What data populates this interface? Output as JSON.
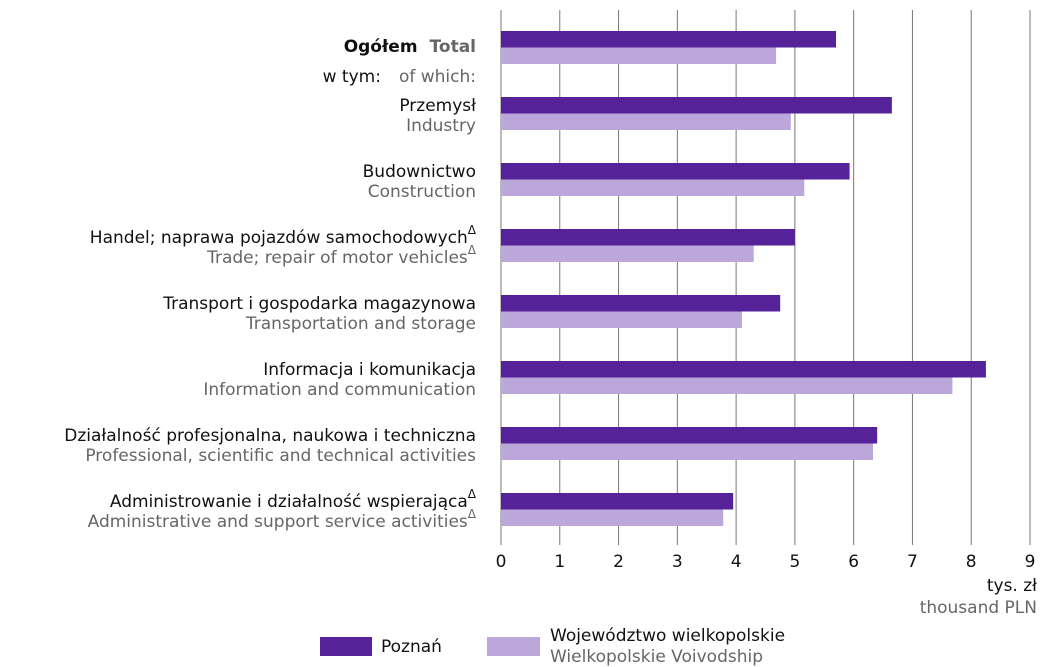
{
  "chart_data": {
    "type": "bar",
    "orientation": "horizontal",
    "categories": [
      {
        "pl": "Ogółem",
        "en": "Total"
      },
      {
        "pl": "Przemysł",
        "en": "Industry"
      },
      {
        "pl": "Budownictwo",
        "en": "Construction"
      },
      {
        "pl": "Handel; naprawa pojazdów samochodowych",
        "en": "Trade; repair of motor vehicles",
        "mark": "Δ"
      },
      {
        "pl": "Transport i gospodarka magazynowa",
        "en": "Transportation and storage"
      },
      {
        "pl": "Informacja i komunikacja",
        "en": "Information and communication"
      },
      {
        "pl": "Działalność profesjonalna, naukowa i techniczna",
        "en": "Professional, scientific and technical activities"
      },
      {
        "pl": "Administrowanie i działalność wspierająca",
        "en": "Administrative and support service activities",
        "mark": "Δ"
      }
    ],
    "subheading": {
      "pl": "w tym:",
      "en": "of which:"
    },
    "series": [
      {
        "name": "Poznań",
        "color": "#55229a",
        "values": [
          5.7,
          6.65,
          5.93,
          5.0,
          4.75,
          8.25,
          6.4,
          3.95
        ]
      },
      {
        "name": "Województwo wielkopolskie",
        "name_en": "Wielkopolskie Voivodship",
        "color": "#bba7d9",
        "values": [
          4.68,
          4.93,
          5.16,
          4.3,
          4.1,
          7.68,
          6.33,
          3.78
        ]
      }
    ],
    "xlabel": {
      "pl": "tys. zł",
      "en": "thousand PLN"
    },
    "xlim": [
      0,
      9
    ],
    "xticks": [
      0,
      1,
      2,
      3,
      4,
      5,
      6,
      7,
      8,
      9
    ],
    "grid": true
  }
}
